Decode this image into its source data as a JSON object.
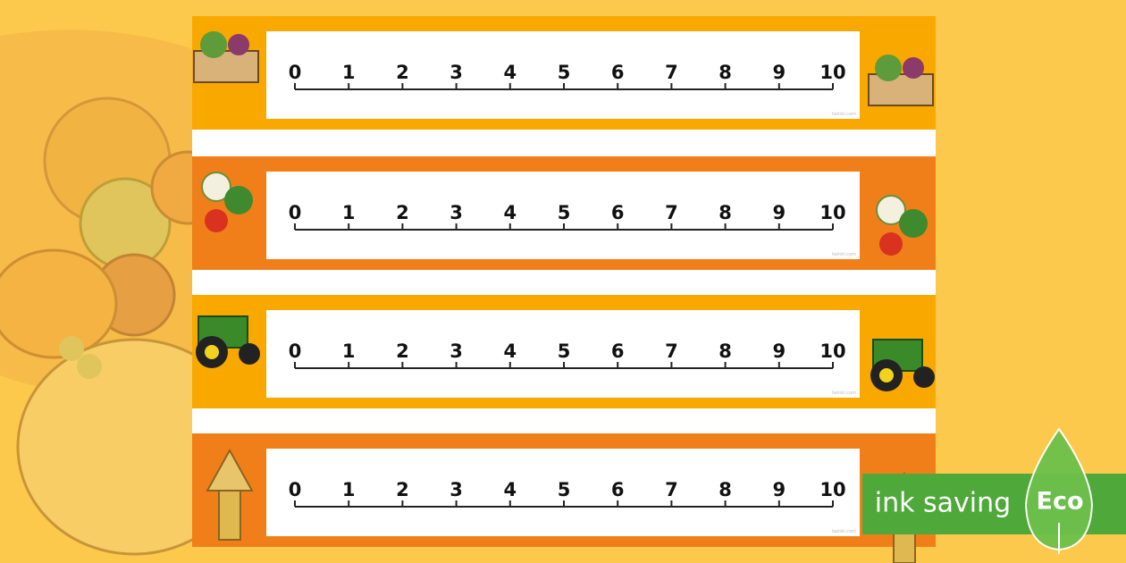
{
  "strips": [
    {
      "numbers": [
        0,
        1,
        2,
        3,
        4,
        5,
        6,
        7,
        8,
        9,
        10
      ],
      "watermark": "twinkl.com"
    },
    {
      "numbers": [
        0,
        1,
        2,
        3,
        4,
        5,
        6,
        7,
        8,
        9,
        10
      ],
      "watermark": "twinkl.com"
    },
    {
      "numbers": [
        0,
        1,
        2,
        3,
        4,
        5,
        6,
        7,
        8,
        9,
        10
      ],
      "watermark": "twinkl.com"
    },
    {
      "numbers": [
        0,
        1,
        2,
        3,
        4,
        5,
        6,
        7,
        8,
        9,
        10
      ],
      "watermark": "twinkl.com"
    }
  ],
  "badge": {
    "label": "ink saving",
    "tag": "Eco"
  }
}
